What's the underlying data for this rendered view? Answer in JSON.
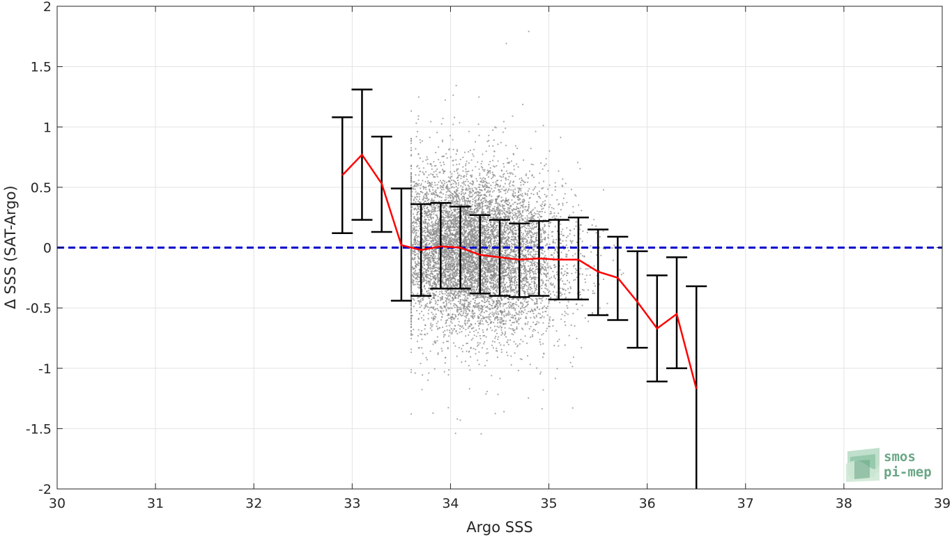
{
  "chart_data": {
    "type": "scatter",
    "xlabel": "Argo SSS",
    "ylabel": "Δ SSS (SAT-Argo)",
    "xlim": [
      30,
      39
    ],
    "ylim": [
      -2,
      2
    ],
    "x_ticks": [
      30,
      31,
      32,
      33,
      34,
      35,
      36,
      37,
      38,
      39
    ],
    "y_ticks": [
      -2,
      -1.5,
      -1,
      -0.5,
      0,
      0.5,
      1,
      1.5,
      2
    ],
    "y_tick_labels": [
      "-2",
      "-1.5",
      "-1",
      "-0.5",
      "0",
      "0.5",
      "1",
      "1.5",
      "2"
    ],
    "grid": true,
    "reference_line": {
      "y": 0,
      "style": "dashed",
      "color": "#0000cc"
    },
    "scatter_points_color": "#8a8a8a",
    "scatter_cloud": {
      "description_of_density": "dense cloud of individual match-up points",
      "x_range": [
        33.6,
        36.0
      ],
      "center": [
        34.2,
        -0.05
      ],
      "spread": [
        0.45,
        0.32
      ]
    },
    "binned_stats": {
      "median_line_color": "#ff0000",
      "errorbar_color": "#000000",
      "x": [
        32.9,
        33.1,
        33.3,
        33.5,
        33.7,
        33.9,
        34.1,
        34.3,
        34.5,
        34.7,
        34.9,
        35.1,
        35.3,
        35.5,
        35.7,
        35.9,
        36.1,
        36.3,
        36.5
      ],
      "median": [
        0.6,
        0.77,
        0.53,
        0.02,
        -0.02,
        0.01,
        0.0,
        -0.06,
        -0.08,
        -0.1,
        -0.09,
        -0.1,
        -0.1,
        -0.2,
        -0.25,
        -0.45,
        -0.67,
        -0.55,
        -1.17
      ],
      "lower": [
        0.12,
        0.23,
        0.13,
        -0.44,
        -0.4,
        -0.34,
        -0.34,
        -0.38,
        -0.4,
        -0.41,
        -0.4,
        -0.43,
        -0.43,
        -0.56,
        -0.6,
        -0.83,
        -1.11,
        -1.0,
        -2.0
      ],
      "upper": [
        1.08,
        1.31,
        0.92,
        0.49,
        0.36,
        0.37,
        0.34,
        0.27,
        0.23,
        0.2,
        0.22,
        0.23,
        0.25,
        0.15,
        0.09,
        -0.03,
        -0.23,
        -0.08,
        -0.32
      ]
    }
  },
  "logo": {
    "line1": "smos",
    "line2": "pi-mep",
    "color": "#6aa685"
  }
}
